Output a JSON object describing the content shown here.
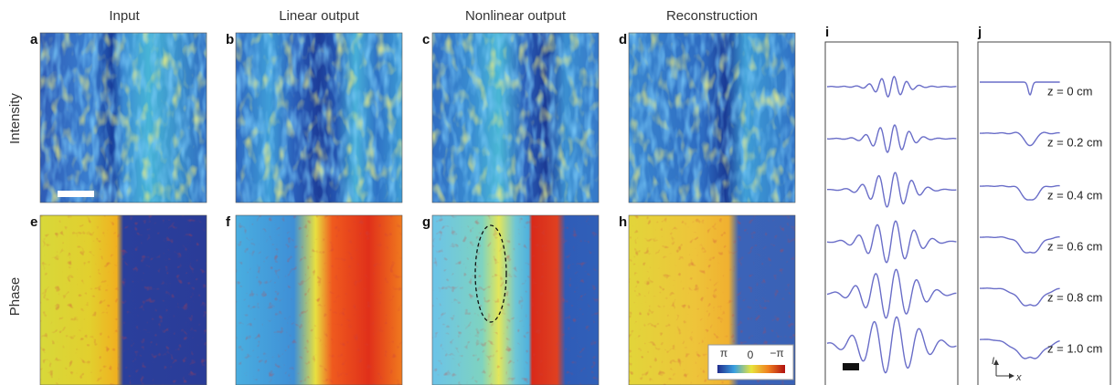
{
  "columns": [
    "Input",
    "Linear output",
    "Nonlinear output",
    "Reconstruction"
  ],
  "rows": [
    "Intensity",
    "Phase"
  ],
  "panel_letters": [
    "a",
    "b",
    "c",
    "d",
    "e",
    "f",
    "g",
    "h",
    "i",
    "j"
  ],
  "colorbar": {
    "labels": [
      "π",
      "0",
      "−π"
    ]
  },
  "panel_j": {
    "z_labels": [
      "z = 0 cm",
      "z = 0.2 cm",
      "z = 0.4 cm",
      "z = 0.6 cm",
      "z = 0.8 cm",
      "z = 1.0 cm"
    ],
    "axis_y": "I",
    "axis_x": "x"
  }
}
